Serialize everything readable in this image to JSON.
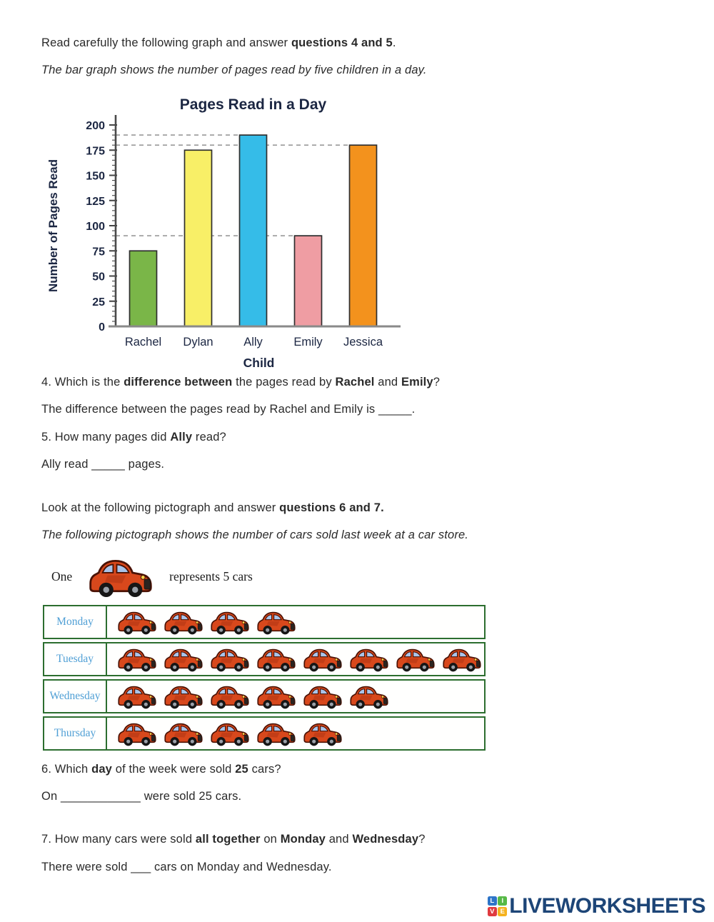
{
  "texts": {
    "intro_bar": [
      {
        "t": "Read carefully the following graph and answer "
      },
      {
        "t": "questions 4 and 5",
        "b": true
      },
      {
        "t": "."
      }
    ],
    "caption_bar": [
      {
        "t": "The bar graph shows the number of pages read by five children in a day.",
        "i": true
      }
    ],
    "q4": [
      {
        "t": "4. Which is the "
      },
      {
        "t": "difference between",
        "b": true
      },
      {
        "t": " the pages read by "
      },
      {
        "t": "Rachel",
        "b": true
      },
      {
        "t": " and "
      },
      {
        "t": "Emily",
        "b": true
      },
      {
        "t": "?"
      }
    ],
    "a4": [
      {
        "t": "The difference between the pages read by Rachel and Emily is _____."
      }
    ],
    "q5": [
      {
        "t": "5. How many pages did "
      },
      {
        "t": "Ally",
        "b": true
      },
      {
        "t": " read?"
      }
    ],
    "a5": [
      {
        "t": "Ally read _____ pages."
      }
    ],
    "intro_picto": [
      {
        "t": "Look at the following pictograph and answer "
      },
      {
        "t": "questions 6 and 7.",
        "b": true
      }
    ],
    "caption_picto": [
      {
        "t": "The following pictograph shows the number of cars sold last week at a car store.",
        "i": true
      }
    ],
    "key_prefix": "One",
    "key_suffix": "represents 5 cars",
    "q6": [
      {
        "t": "6. Which "
      },
      {
        "t": "day",
        "b": true
      },
      {
        "t": " of the week were sold "
      },
      {
        "t": "25",
        "b": true
      },
      {
        "t": " cars?"
      }
    ],
    "a6": [
      {
        "t": "On ____________ were sold 25 cars."
      }
    ],
    "q7": [
      {
        "t": "7. How many cars were sold "
      },
      {
        "t": "all together",
        "b": true
      },
      {
        "t": " on "
      },
      {
        "t": "Monday",
        "b": true
      },
      {
        "t": " and "
      },
      {
        "t": "Wednesday",
        "b": true
      },
      {
        "t": "?"
      }
    ],
    "a7": [
      {
        "t": "There were sold ___ cars on Monday and Wednesday."
      }
    ]
  },
  "chart_data": [
    {
      "type": "bar",
      "title": "Pages Read in a Day",
      "xlabel": "Child",
      "ylabel": "Number of Pages Read",
      "categories": [
        "Rachel",
        "Dylan",
        "Ally",
        "Emily",
        "Jessica"
      ],
      "values": [
        75,
        175,
        190,
        90,
        180
      ],
      "bar_colors": [
        "#7ab648",
        "#f8ef67",
        "#35bce8",
        "#ef9da3",
        "#f3921d"
      ],
      "ylim": [
        0,
        200
      ],
      "ytick_step": 25,
      "minor_tick_step": 5,
      "grid": "off",
      "legend": "none",
      "dashed_guides": [
        {
          "value": 190,
          "to_category": "Ally"
        },
        {
          "value": 180,
          "to_category": "Jessica"
        },
        {
          "value": 90,
          "to_category": "Emily"
        }
      ]
    },
    {
      "type": "pictograph",
      "icon": "car-icon",
      "unit_per_icon": 5,
      "unit_name": "cars",
      "rows": [
        {
          "day": "Monday",
          "icons": 4,
          "cars_sold": 20
        },
        {
          "day": "Tuesday",
          "icons": 8,
          "cars_sold": 40
        },
        {
          "day": "Wednesday",
          "icons": 6,
          "cars_sold": 30
        },
        {
          "day": "Thursday",
          "icons": 5,
          "cars_sold": 25
        }
      ]
    }
  ],
  "footer": {
    "logo_text": "LIVEWORKSHEETS",
    "logo_text_color": "#1d4577",
    "logo_squares": [
      {
        "letter": "L",
        "color": "#2e75c8"
      },
      {
        "letter": "I",
        "color": "#57b947"
      },
      {
        "letter": "V",
        "color": "#e03a3f"
      },
      {
        "letter": "E",
        "color": "#f5b21e"
      }
    ]
  }
}
